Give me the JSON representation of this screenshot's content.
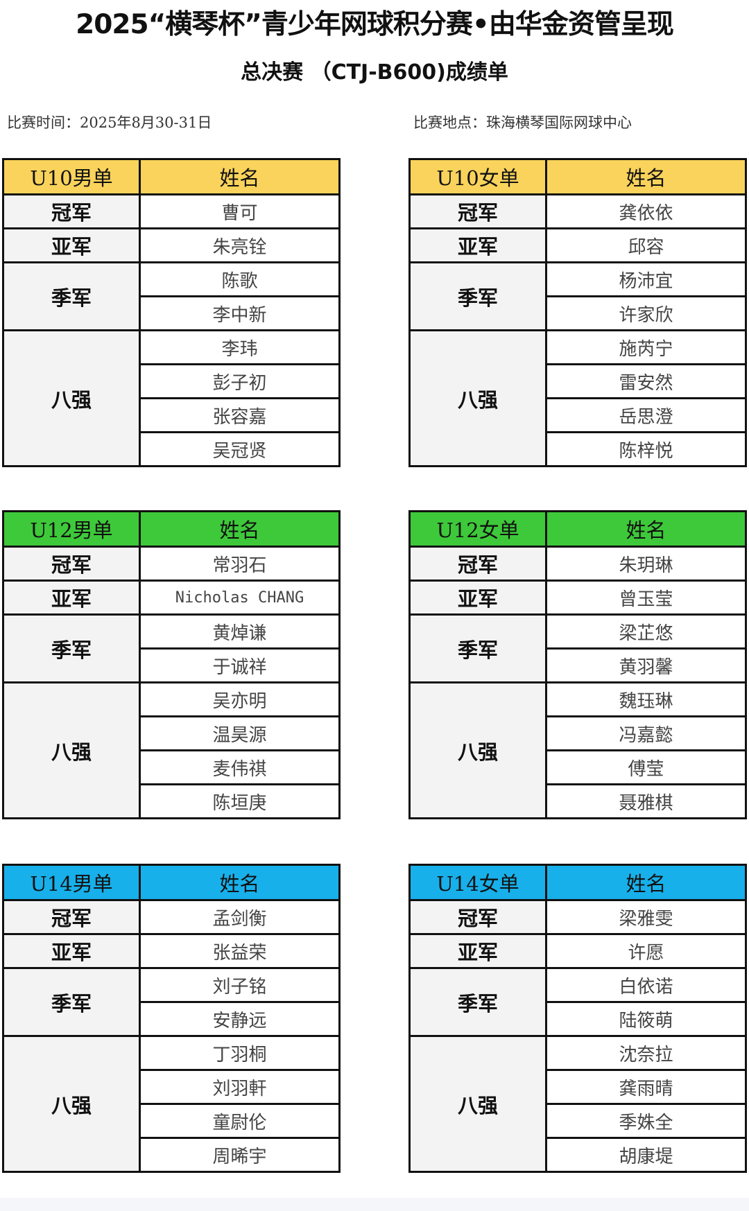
{
  "header": {
    "title": "2025“横琴杯”青少年网球积分赛•由华金资管呈现",
    "subtitle": "总决赛 （CTJ-B600)成绩单",
    "date": "比赛时间：2025年8月30-31日",
    "venue": "比赛地点：珠海横琴国际网球中心"
  },
  "colors": {
    "u10": "#f9d35b",
    "u12": "#3ec93a",
    "u14": "#18b0ea"
  },
  "rank_labels": {
    "champion": "冠军",
    "runner_up": "亚军",
    "third": "季军",
    "quarter": "八强"
  },
  "name_header": "姓名",
  "tables": [
    {
      "event": "U10男单",
      "color_key": "u10",
      "champion": "曹可",
      "runner_up": "朱亮铨",
      "third": [
        "陈歌",
        "李中新"
      ],
      "quarter": [
        "李玮",
        "彭子初",
        "张容嘉",
        "吴冠贤"
      ]
    },
    {
      "event": "U10女单",
      "color_key": "u10",
      "champion": "龚依依",
      "runner_up": "邱容",
      "third": [
        "杨沛宜",
        "许家欣"
      ],
      "quarter": [
        "施芮宁",
        "雷安然",
        "岳思澄",
        "陈梓悦"
      ]
    },
    {
      "event": "U12男单",
      "color_key": "u12",
      "champion": "常羽石",
      "runner_up": "Nicholas CHANG",
      "third": [
        "黄焯谦",
        "于诚祥"
      ],
      "quarter": [
        "吴亦明",
        "温昊源",
        "麦伟祺",
        "陈垣庚"
      ]
    },
    {
      "event": "U12女单",
      "color_key": "u12",
      "champion": "朱玥琳",
      "runner_up": "曾玉莹",
      "third": [
        "梁芷悠",
        "黄羽馨"
      ],
      "quarter": [
        "魏珏琳",
        "冯嘉懿",
        "傅莹",
        "聂雅棋"
      ]
    },
    {
      "event": "U14男单",
      "color_key": "u14",
      "champion": "孟剑衡",
      "runner_up": "张益荣",
      "third": [
        "刘子铭",
        "安静远"
      ],
      "quarter": [
        "丁羽桐",
        "刘羽軒",
        "童尉伦",
        "周晞宇"
      ]
    },
    {
      "event": "U14女单",
      "color_key": "u14",
      "champion": "梁雅雯",
      "runner_up": "许愿",
      "third": [
        "白依诺",
        "陆筱萌"
      ],
      "quarter": [
        "沈奈拉",
        "龚雨晴",
        "季姝全",
        "胡康堤"
      ]
    }
  ]
}
